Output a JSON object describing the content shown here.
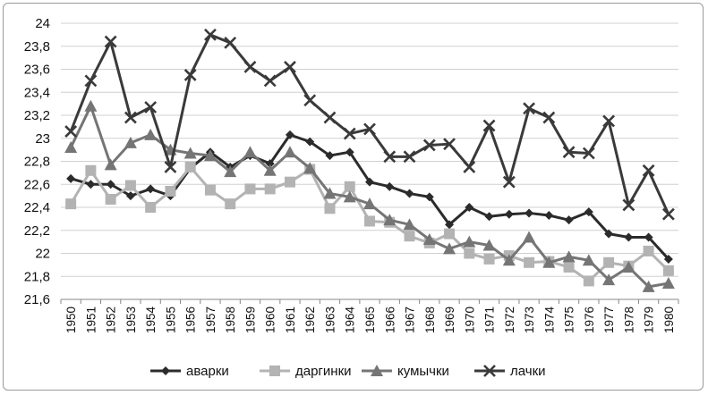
{
  "chart_data": {
    "type": "line",
    "title": "",
    "xlabel": "",
    "ylabel": "",
    "x": [
      "1950",
      "1951",
      "1952",
      "1953",
      "1954",
      "1955",
      "1956",
      "1957",
      "1958",
      "1959",
      "1960",
      "1961",
      "1962",
      "1963",
      "1964",
      "1965",
      "1966",
      "1967",
      "1968",
      "1969",
      "1970",
      "1971",
      "1972",
      "1973",
      "1974",
      "1975",
      "1976",
      "1977",
      "1978",
      "1979",
      "1980"
    ],
    "ylim": [
      21.6,
      24
    ],
    "yticks": [
      "21,6",
      "21,8",
      "22",
      "22,2",
      "22,4",
      "22,6",
      "22,8",
      "23",
      "23,2",
      "23,4",
      "23,6",
      "23,8",
      "24"
    ],
    "grid": "horizontal",
    "legend_position": "bottom",
    "series": [
      {
        "name": "аварки",
        "color": "#2b2b2b",
        "marker": "diamond",
        "values": [
          22.65,
          22.6,
          22.6,
          22.5,
          22.56,
          22.5,
          22.74,
          22.88,
          22.75,
          22.85,
          22.78,
          23.03,
          22.97,
          22.85,
          22.88,
          22.62,
          22.58,
          22.52,
          22.49,
          22.25,
          22.4,
          22.32,
          22.34,
          22.35,
          22.33,
          22.29,
          22.36,
          22.17,
          22.14,
          22.14,
          21.95
        ]
      },
      {
        "name": "даргинки",
        "color": "#b3b3b3",
        "marker": "square",
        "values": [
          22.43,
          22.72,
          22.47,
          22.59,
          22.4,
          22.54,
          22.75,
          22.55,
          22.43,
          22.56,
          22.56,
          22.62,
          22.73,
          22.39,
          22.58,
          22.28,
          22.27,
          22.15,
          22.09,
          22.17,
          22.0,
          21.95,
          21.98,
          21.92,
          21.93,
          21.88,
          21.76,
          21.92,
          21.89,
          22.02,
          21.85
        ]
      },
      {
        "name": "кумычки",
        "color": "#757575",
        "marker": "triangle",
        "values": [
          22.92,
          23.28,
          22.77,
          22.96,
          23.03,
          22.9,
          22.87,
          22.85,
          22.71,
          22.88,
          22.72,
          22.88,
          22.74,
          22.52,
          22.49,
          22.43,
          22.29,
          22.25,
          22.12,
          22.04,
          22.1,
          22.07,
          21.94,
          22.14,
          21.92,
          21.97,
          21.94,
          21.77,
          21.88,
          21.71,
          21.74
        ]
      },
      {
        "name": "лачки",
        "color": "#3a3a3a",
        "marker": "x",
        "values": [
          23.06,
          23.5,
          23.84,
          23.18,
          23.27,
          22.75,
          23.55,
          23.9,
          23.83,
          23.62,
          23.5,
          23.62,
          23.33,
          23.18,
          23.04,
          23.08,
          22.84,
          22.84,
          22.94,
          22.95,
          22.75,
          23.11,
          22.62,
          23.26,
          23.18,
          22.88,
          22.87,
          23.15,
          22.42,
          22.72,
          22.34
        ]
      }
    ]
  }
}
